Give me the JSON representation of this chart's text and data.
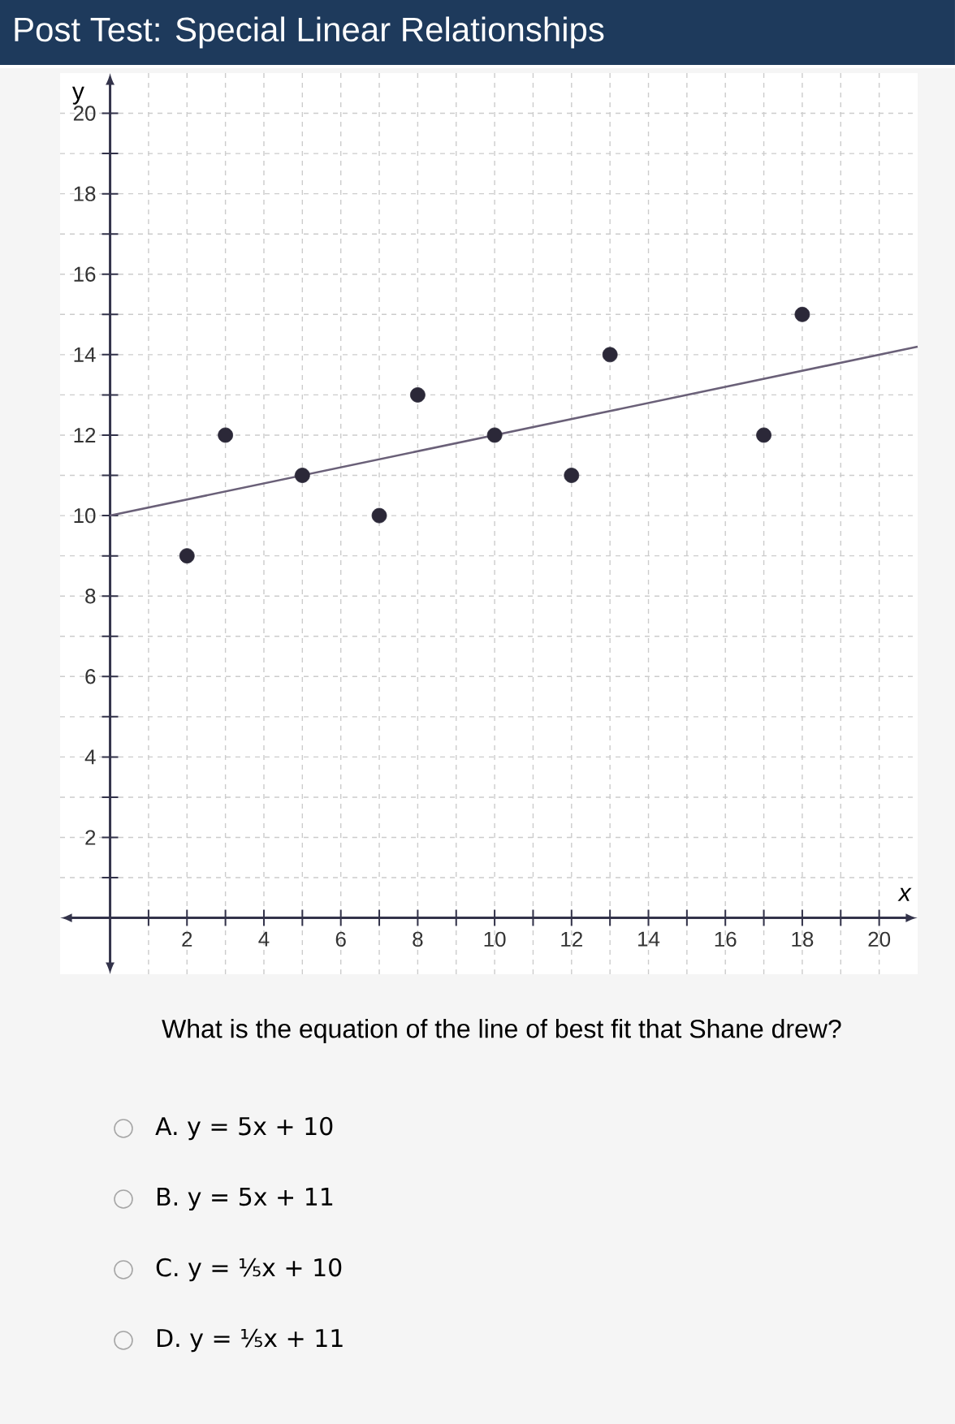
{
  "chart_data": {
    "type": "scatter",
    "title": "Post Test: Special Linear Relationships",
    "xlabel": "x",
    "ylabel": "y",
    "series": [
      {
        "color": "#2b2838",
        "marker": "circle",
        "x": [
          2,
          3,
          5,
          7,
          8,
          10,
          12,
          13,
          17,
          18
        ],
        "values": [
          9,
          12,
          11,
          10,
          13,
          12,
          11,
          14,
          12,
          15
        ]
      },
      {
        "type": "line",
        "color": "#6a6078",
        "marker": "none",
        "line_style": "solid",
        "x": [
          0,
          21
        ],
        "values": [
          10,
          14.2
        ]
      }
    ],
    "xlim": [
      -1.3,
      21
    ],
    "ylim": [
      -1.4,
      21
    ],
    "xticks": [
      {
        "value": 1,
        "label": null
      },
      2,
      {
        "value": 3,
        "label": null
      },
      4,
      {
        "value": 5,
        "label": null
      },
      6,
      {
        "value": 7,
        "label": null
      },
      8,
      {
        "value": 9,
        "label": null
      },
      10,
      {
        "value": 11,
        "label": null
      },
      12,
      {
        "value": 13,
        "label": null
      },
      14,
      {
        "value": 15,
        "label": null
      },
      16,
      {
        "value": 17,
        "label": null
      },
      18,
      {
        "value": 19,
        "label": null
      },
      20
    ],
    "yticks": [
      {
        "value": 1,
        "label": null
      },
      2,
      {
        "value": 3,
        "label": null
      },
      4,
      {
        "value": 5,
        "label": null
      },
      6,
      {
        "value": 7,
        "label": null
      },
      8,
      {
        "value": 9,
        "label": null
      },
      10,
      {
        "value": 11,
        "label": null
      },
      12,
      {
        "value": 13,
        "label": null
      },
      14,
      {
        "value": 15,
        "label": null
      },
      16,
      {
        "value": 17,
        "label": null
      },
      18,
      {
        "value": 19,
        "label": null
      },
      20
    ],
    "grid": true,
    "annotations": [
      "What is the equation of the line of best fit that Shane drew?",
      "A. y = 5x + 10",
      "B. y = 5x + 11",
      "C. y = ⅕x + 10",
      "D. y = ⅕x + 11"
    ]
  }
}
